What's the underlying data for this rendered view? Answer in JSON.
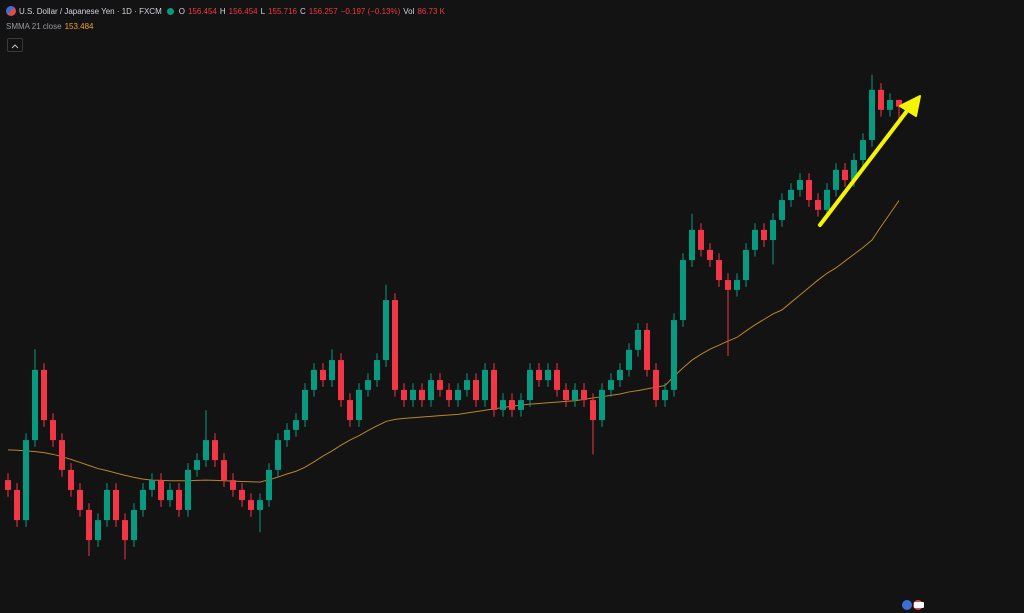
{
  "header": {
    "title": "U.S. Dollar / Japanese Yen · 1D · FXCM",
    "open_label": "O",
    "open_value": "156.454",
    "high_label": "H",
    "high_value": "156.454",
    "low_label": "L",
    "low_value": "155.716",
    "close_label": "C",
    "close_value": "156.257",
    "change": "−0.197 (−0.13%)",
    "volume_label": "Vol",
    "volume_value": "86.73 K",
    "indicator_label": "SMMA 21 close",
    "indicator_value": "153.484"
  },
  "chart_data": {
    "type": "candlestick",
    "up_color": "#089981",
    "down_color": "#f23645",
    "ylim": [
      141.32,
      159.4
    ],
    "open": [
      145.24,
      144.95,
      144.06,
      146.42,
      148.49,
      147.01,
      146.42,
      145.54,
      144.95,
      144.36,
      143.47,
      144.06,
      144.95,
      144.06,
      143.47,
      144.36,
      144.95,
      145.24,
      144.65,
      144.95,
      144.36,
      145.54,
      145.83,
      146.42,
      145.83,
      145.24,
      144.95,
      144.65,
      144.36,
      144.65,
      145.54,
      146.42,
      146.72,
      147.01,
      147.9,
      148.49,
      148.19,
      148.78,
      147.6,
      147.01,
      147.9,
      148.19,
      148.78,
      150.55,
      147.9,
      147.6,
      147.9,
      147.6,
      148.19,
      147.9,
      147.6,
      147.9,
      148.19,
      147.6,
      148.49,
      147.31,
      147.6,
      147.31,
      147.6,
      148.49,
      148.19,
      148.49,
      147.9,
      147.6,
      147.9,
      147.6,
      147.01,
      147.9,
      148.19,
      148.49,
      149.08,
      149.67,
      148.49,
      147.6,
      147.9,
      149.96,
      151.73,
      152.62,
      152.03,
      151.73,
      151.14,
      150.85,
      151.14,
      152.03,
      152.62,
      152.32,
      152.91,
      153.5,
      153.8,
      154.09,
      153.5,
      153.21,
      153.8,
      154.39,
      154.09,
      154.68,
      155.27,
      156.75,
      156.16,
      156.454
    ],
    "high": [
      145.44,
      145.15,
      146.62,
      149.1,
      148.69,
      147.21,
      146.62,
      145.74,
      145.15,
      144.56,
      144.26,
      145.15,
      145.15,
      144.26,
      144.56,
      145.15,
      145.44,
      145.44,
      145.15,
      145.15,
      145.74,
      146.03,
      147.3,
      146.62,
      146.03,
      145.44,
      145.15,
      144.85,
      144.85,
      145.74,
      146.62,
      146.92,
      147.21,
      148.1,
      148.69,
      148.69,
      149.1,
      148.98,
      147.8,
      148.1,
      148.39,
      148.98,
      151.0,
      150.75,
      148.1,
      148.1,
      148.1,
      148.39,
      148.39,
      148.1,
      148.1,
      148.39,
      148.39,
      148.69,
      148.69,
      147.8,
      147.8,
      147.8,
      148.69,
      148.69,
      148.69,
      148.69,
      148.1,
      148.1,
      148.1,
      147.8,
      148.1,
      148.39,
      148.69,
      149.28,
      149.87,
      149.87,
      148.69,
      148.1,
      150.16,
      151.93,
      153.1,
      152.82,
      152.23,
      151.93,
      151.34,
      151.34,
      152.23,
      152.82,
      152.82,
      153.11,
      153.7,
      154.0,
      154.29,
      154.29,
      153.7,
      154.0,
      154.59,
      154.59,
      154.88,
      155.47,
      157.2,
      156.95,
      156.65,
      156.454
    ],
    "low": [
      144.75,
      143.86,
      143.86,
      146.22,
      146.81,
      146.22,
      145.34,
      144.75,
      144.16,
      143.0,
      143.27,
      143.86,
      143.86,
      142.9,
      143.27,
      144.16,
      144.75,
      144.45,
      144.45,
      144.16,
      144.16,
      145.34,
      145.63,
      145.63,
      145.04,
      144.75,
      144.45,
      144.16,
      143.7,
      144.45,
      145.34,
      146.22,
      146.52,
      146.81,
      147.7,
      147.99,
      147.99,
      147.4,
      146.81,
      146.81,
      147.7,
      147.99,
      148.58,
      147.7,
      147.4,
      147.4,
      147.4,
      147.4,
      147.7,
      147.4,
      147.4,
      147.7,
      147.4,
      147.4,
      147.11,
      147.11,
      147.11,
      147.11,
      147.4,
      147.99,
      147.99,
      147.7,
      147.4,
      147.4,
      147.4,
      146.0,
      146.81,
      147.7,
      147.99,
      148.29,
      148.88,
      148.29,
      147.4,
      147.4,
      147.7,
      149.76,
      151.53,
      151.83,
      151.53,
      150.94,
      148.9,
      150.65,
      150.94,
      151.83,
      152.12,
      151.6,
      152.71,
      153.3,
      153.6,
      153.3,
      153.01,
      153.01,
      153.6,
      153.89,
      153.89,
      154.48,
      155.07,
      155.96,
      155.96,
      155.716
    ],
    "close": [
      144.95,
      144.06,
      146.42,
      148.49,
      147.01,
      146.42,
      145.54,
      144.95,
      144.36,
      143.47,
      144.06,
      144.95,
      144.06,
      143.47,
      144.36,
      144.95,
      145.24,
      144.65,
      144.95,
      144.36,
      145.54,
      145.83,
      146.42,
      145.83,
      145.24,
      144.95,
      144.65,
      144.36,
      144.65,
      145.54,
      146.42,
      146.72,
      147.01,
      147.9,
      148.49,
      148.19,
      148.78,
      147.6,
      147.01,
      147.9,
      148.19,
      148.78,
      150.55,
      147.9,
      147.6,
      147.9,
      147.6,
      148.19,
      147.9,
      147.6,
      147.9,
      148.19,
      147.6,
      148.49,
      147.31,
      147.6,
      147.31,
      147.6,
      148.49,
      148.19,
      148.49,
      147.9,
      147.6,
      147.9,
      147.6,
      147.01,
      147.9,
      148.19,
      148.49,
      149.08,
      149.67,
      148.49,
      147.6,
      147.9,
      149.96,
      151.73,
      152.62,
      152.03,
      151.73,
      151.14,
      150.85,
      151.14,
      152.03,
      152.62,
      152.32,
      152.91,
      153.5,
      153.8,
      154.09,
      153.5,
      153.21,
      153.8,
      154.39,
      154.09,
      154.68,
      155.27,
      156.75,
      156.16,
      156.45,
      156.257
    ],
    "overlay": {
      "color": "#b8862a",
      "values": [
        146.13,
        146.12,
        146.1,
        146.08,
        146.05,
        146.0,
        145.93,
        145.85,
        145.76,
        145.67,
        145.58,
        145.52,
        145.45,
        145.38,
        145.32,
        145.27,
        145.24,
        145.23,
        145.22,
        145.22,
        145.22,
        145.23,
        145.24,
        145.23,
        145.22,
        145.21,
        145.2,
        145.19,
        145.18,
        145.25,
        145.33,
        145.42,
        145.5,
        145.62,
        145.78,
        145.95,
        146.1,
        146.27,
        146.42,
        146.55,
        146.7,
        146.84,
        146.97,
        147.03,
        147.06,
        147.08,
        147.1,
        147.12,
        147.14,
        147.16,
        147.18,
        147.22,
        147.26,
        147.3,
        147.34,
        147.38,
        147.42,
        147.45,
        147.48,
        147.5,
        147.52,
        147.54,
        147.56,
        147.58,
        147.62,
        147.66,
        147.7,
        147.74,
        147.78,
        147.84,
        147.88,
        147.93,
        147.98,
        148.03,
        148.3,
        148.55,
        148.78,
        148.95,
        149.1,
        149.22,
        149.34,
        149.45,
        149.64,
        149.82,
        149.98,
        150.14,
        150.26,
        150.48,
        150.7,
        150.92,
        151.14,
        151.34,
        151.5,
        151.7,
        151.9,
        152.1,
        152.32,
        152.72,
        153.1,
        153.484
      ]
    }
  }
}
